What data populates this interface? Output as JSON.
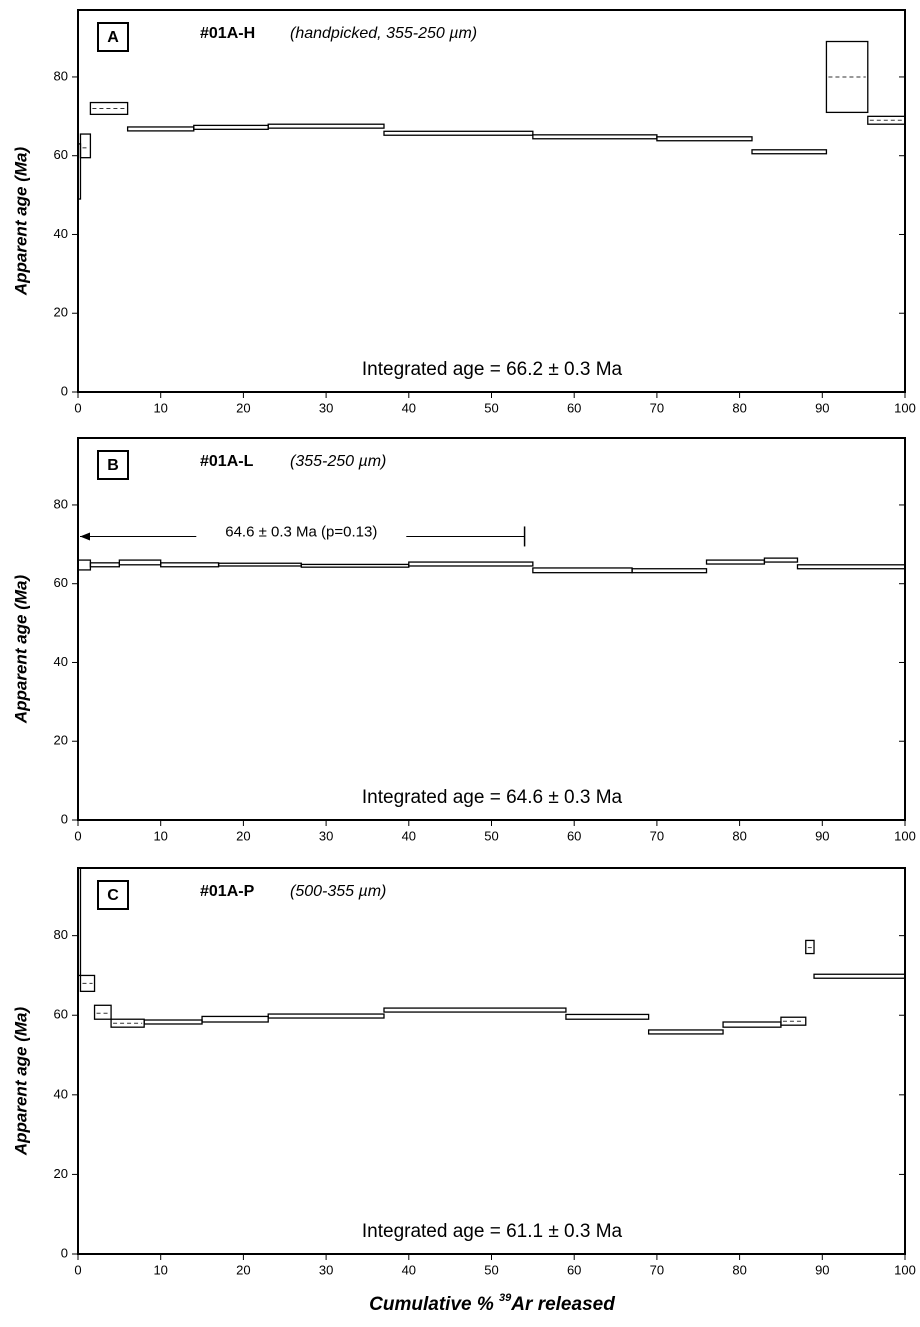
{
  "chart_data": [
    {
      "type": "age-spectrum",
      "panel": "A",
      "title": "#01A-H",
      "subtitle": "(handpicked, 355-250 µm)",
      "annotation": "Integrated age = 66.2 ± 0.3 Ma",
      "ylabel": "Apparent age (Ma)",
      "bins": [
        0,
        0.3,
        1.5,
        6,
        14,
        23,
        37,
        55,
        70,
        81.5,
        90.5,
        95.5,
        100
      ],
      "low": [
        49,
        59.5,
        70.5,
        66.3,
        66.7,
        67.0,
        65.2,
        64.3,
        63.8,
        60.5,
        71,
        68
      ],
      "high": [
        63,
        65.5,
        73.5,
        67.3,
        67.7,
        68.0,
        66.2,
        65.3,
        64.8,
        61.5,
        89,
        70
      ],
      "mean": [
        null,
        62,
        72,
        null,
        null,
        null,
        null,
        null,
        null,
        null,
        80,
        69
      ],
      "xlim": [
        0,
        100
      ],
      "xticks": [
        0,
        10,
        20,
        30,
        40,
        50,
        60,
        70,
        80,
        90,
        100
      ],
      "ylim": [
        0,
        97
      ],
      "yticks": [
        0,
        20,
        40,
        60,
        80
      ]
    },
    {
      "type": "age-spectrum",
      "panel": "B",
      "title": "#01A-L",
      "subtitle": "(355-250 µm)",
      "annotation": "Integrated age = 64.6 ± 0.3 Ma",
      "ylabel": "Apparent age (Ma)",
      "plateau": {
        "label": "64.6 ± 0.3 Ma (p=0.13)",
        "start": 0,
        "end": 54
      },
      "bins": [
        0,
        1.5,
        5,
        10,
        17,
        27,
        40,
        55,
        67,
        76,
        83,
        87,
        100
      ],
      "low": [
        63.5,
        64.3,
        64.8,
        64.3,
        64.5,
        64.2,
        64.5,
        62.8,
        62.8,
        65,
        65.5,
        63.8
      ],
      "high": [
        66,
        65.3,
        66,
        65.3,
        65.2,
        64.9,
        65.5,
        64,
        63.8,
        66,
        66.5,
        64.8
      ],
      "xlim": [
        0,
        100
      ],
      "xticks": [
        0,
        10,
        20,
        30,
        40,
        50,
        60,
        70,
        80,
        90,
        100
      ],
      "ylim": [
        0,
        97
      ],
      "yticks": [
        0,
        20,
        40,
        60,
        80
      ]
    },
    {
      "type": "age-spectrum",
      "panel": "C",
      "title": "#01A-P",
      "subtitle": "(500-355 µm)",
      "annotation": "Integrated age = 61.1 ± 0.3 Ma",
      "ylabel": "Apparent age (Ma)",
      "xlabel": {
        "prefix": "Cumulative % ",
        "isotope": "39",
        "suffix": "Ar released"
      },
      "bins": [
        0,
        0.3,
        2,
        4,
        8,
        15,
        23,
        37,
        59,
        69,
        78,
        85,
        88,
        89,
        100
      ],
      "low": [
        70,
        66,
        59,
        57,
        57.8,
        58.3,
        59.3,
        60.8,
        59,
        55.3,
        57,
        57.5,
        75.5,
        69.3
      ],
      "high": [
        97,
        70,
        62.5,
        59,
        58.8,
        59.7,
        60.3,
        61.8,
        60.2,
        56.3,
        58.3,
        59.5,
        78.8,
        70.3
      ],
      "mean": [
        null,
        68,
        60.5,
        58,
        null,
        null,
        null,
        null,
        null,
        null,
        null,
        58.5,
        77,
        null
      ],
      "xlim": [
        0,
        100
      ],
      "xticks": [
        0,
        10,
        20,
        30,
        40,
        50,
        60,
        70,
        80,
        90,
        100
      ],
      "ylim": [
        0,
        97
      ],
      "yticks": [
        0,
        20,
        40,
        60,
        80
      ]
    }
  ]
}
